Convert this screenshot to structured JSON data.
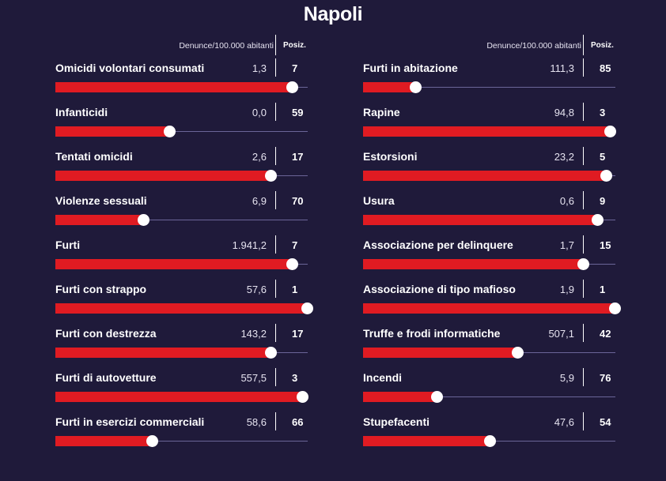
{
  "title": "Napoli",
  "header": {
    "rate_label": "Denunce/100.000 abitanti",
    "pos_label": "Posiz."
  },
  "colors": {
    "background": "#1f1a3a",
    "bar": "#e01b22",
    "track": "#6b6598",
    "marker": "#ffffff"
  },
  "chart_data": {
    "type": "bar",
    "title": "Napoli",
    "columns": [
      {
        "rows": [
          {
            "label": "Omicidi volontari consumati",
            "value": "1,3",
            "position": "7",
            "fill": 0.94
          },
          {
            "label": "Infanticidi",
            "value": "0,0",
            "position": "59",
            "fill": 0.455
          },
          {
            "label": "Tentati omicidi",
            "value": "2,6",
            "position": "17",
            "fill": 0.855
          },
          {
            "label": "Violenze sessuali",
            "value": "6,9",
            "position": "70",
            "fill": 0.35
          },
          {
            "label": "Furti",
            "value": "1.941,2",
            "position": "7",
            "fill": 0.94
          },
          {
            "label": "Furti con strappo",
            "value": "57,6",
            "position": "1",
            "fill": 1.0
          },
          {
            "label": "Furti con destrezza",
            "value": "143,2",
            "position": "17",
            "fill": 0.855
          },
          {
            "label": "Furti di autovetture",
            "value": "557,5",
            "position": "3",
            "fill": 0.98
          },
          {
            "label": "Furti in esercizi commerciali",
            "value": "58,6",
            "position": "66",
            "fill": 0.385
          }
        ]
      },
      {
        "rows": [
          {
            "label": "Furti in abitazione",
            "value": "111,3",
            "position": "85",
            "fill": 0.21
          },
          {
            "label": "Rapine",
            "value": "94,8",
            "position": "3",
            "fill": 0.98
          },
          {
            "label": "Estorsioni",
            "value": "23,2",
            "position": "5",
            "fill": 0.965
          },
          {
            "label": "Usura",
            "value": "0,6",
            "position": "9",
            "fill": 0.93
          },
          {
            "label": "Associazione per delinquere",
            "value": "1,7",
            "position": "15",
            "fill": 0.875
          },
          {
            "label": "Associazione di tipo mafioso",
            "value": "1,9",
            "position": "1",
            "fill": 1.0
          },
          {
            "label": "Truffe e frodi informatiche",
            "value": "507,1",
            "position": "42",
            "fill": 0.615
          },
          {
            "label": "Incendi",
            "value": "5,9",
            "position": "76",
            "fill": 0.295
          },
          {
            "label": "Stupefacenti",
            "value": "47,6",
            "position": "54",
            "fill": 0.505
          }
        ]
      }
    ]
  }
}
